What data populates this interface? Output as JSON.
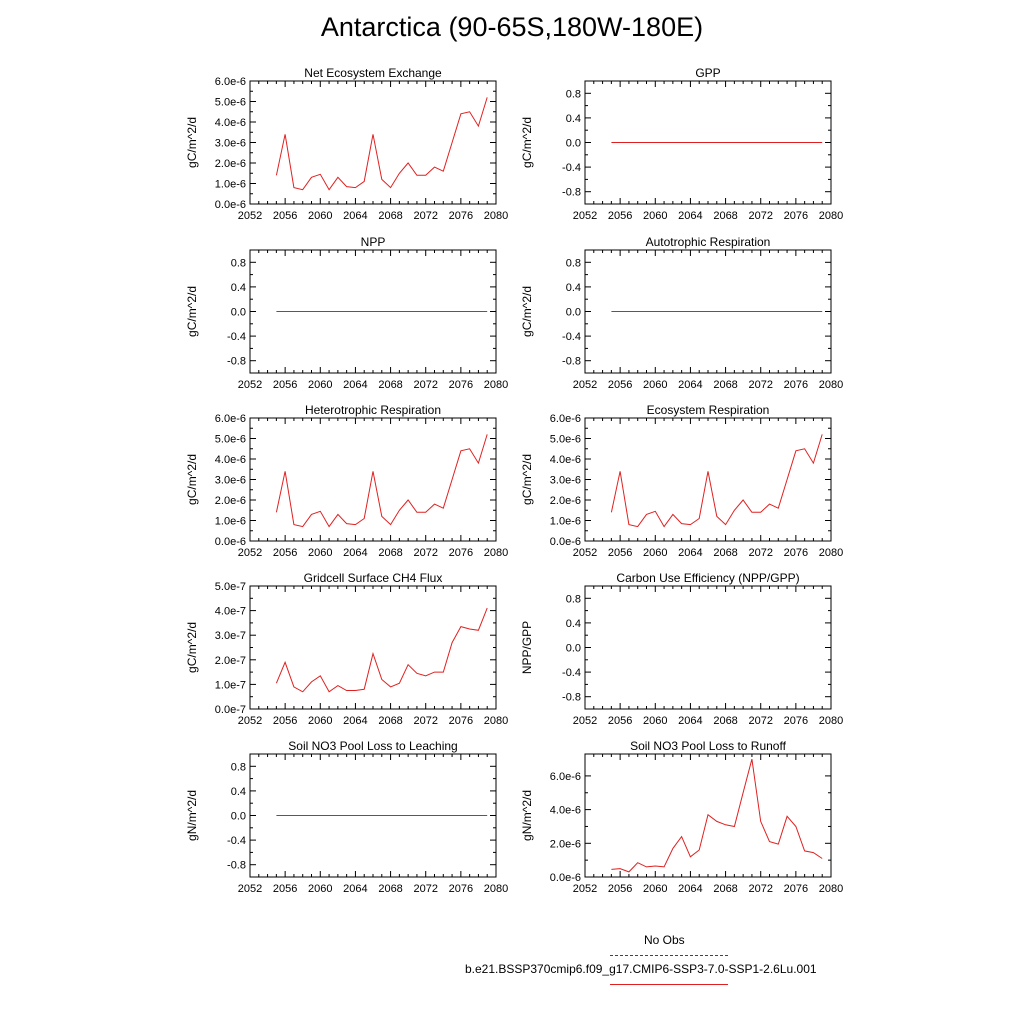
{
  "page": {
    "title": "Antarctica (90-65S,180W-180E)"
  },
  "colors": {
    "model_line": "#e02020",
    "obs_line": "#3333cc",
    "axis": "#000000"
  },
  "legend": [
    {
      "label": "No Obs",
      "style": "dashed",
      "color": "#3333cc"
    },
    {
      "label": "b.e21.BSSP370cmip6.f09_g17.CMIP6-SSP3-7.0-SSP1-2.6Lu.001",
      "style": "solid",
      "color": "#e02020"
    }
  ],
  "chart_data": [
    {
      "type": "line",
      "title": "Net Ecosystem Exchange",
      "ylabel": "gC/m^2/d",
      "xlim": [
        2052,
        2080
      ],
      "xticks": [
        "2052",
        "2056",
        "2060",
        "2064",
        "2068",
        "2072",
        "2076",
        "2080"
      ],
      "ylim": [
        0,
        6e-06
      ],
      "yticks": [
        0,
        1e-06,
        2e-06,
        3e-06,
        4e-06,
        5e-06,
        6e-06
      ],
      "yticklabels": [
        "0.0e-6",
        "1.0e-6",
        "2.0e-6",
        "3.0e-6",
        "4.0e-6",
        "5.0e-6",
        "6.0e-6"
      ],
      "x": [
        2055,
        2056,
        2057,
        2058,
        2059,
        2060,
        2061,
        2062,
        2063,
        2064,
        2065,
        2066,
        2067,
        2068,
        2069,
        2070,
        2071,
        2072,
        2073,
        2074,
        2075,
        2076,
        2077,
        2078,
        2079
      ],
      "series": [
        {
          "values": [
            1.4e-06,
            3.4e-06,
            8e-07,
            7e-07,
            1.3e-06,
            1.45e-06,
            7e-07,
            1.3e-06,
            8.5e-07,
            8e-07,
            1.1e-06,
            3.4e-06,
            1.2e-06,
            8e-07,
            1.5e-06,
            2e-06,
            1.4e-06,
            1.4e-06,
            1.8e-06,
            1.6e-06,
            3e-06,
            4.4e-06,
            4.5e-06,
            3.8e-06,
            5.2e-06
          ]
        }
      ]
    },
    {
      "type": "line",
      "title": "GPP",
      "ylabel": "gC/m^2/d",
      "xlim": [
        2052,
        2080
      ],
      "xticks": [
        "2052",
        "2056",
        "2060",
        "2064",
        "2068",
        "2072",
        "2076",
        "2080"
      ],
      "ylim": [
        -1.0,
        1.0
      ],
      "yticks": [
        -0.8,
        -0.4,
        0.0,
        0.4,
        0.8
      ],
      "yticklabels": [
        "-0.8",
        "-0.4",
        "0.0",
        "0.4",
        "0.8"
      ],
      "x": [
        2055,
        2079
      ],
      "series": [
        {
          "values": [
            0,
            0
          ]
        }
      ]
    },
    {
      "type": "line",
      "title": "NPP",
      "ylabel": "gC/m^2/d",
      "xlim": [
        2052,
        2080
      ],
      "xticks": [
        "2052",
        "2056",
        "2060",
        "2064",
        "2068",
        "2072",
        "2076",
        "2080"
      ],
      "ylim": [
        -1.0,
        1.0
      ],
      "yticks": [
        -0.8,
        -0.4,
        0.0,
        0.4,
        0.8
      ],
      "yticklabels": [
        "-0.8",
        "-0.4",
        "0.0",
        "0.4",
        "0.8"
      ],
      "x": [
        2055,
        2079
      ],
      "series": [
        {
          "values": [
            0,
            0
          ]
        }
      ]
    },
    {
      "type": "line",
      "title": "Autotrophic Respiration",
      "ylabel": "gC/m^2/d",
      "xlim": [
        2052,
        2080
      ],
      "xticks": [
        "2052",
        "2056",
        "2060",
        "2064",
        "2068",
        "2072",
        "2076",
        "2080"
      ],
      "ylim": [
        -1.0,
        1.0
      ],
      "yticks": [
        -0.8,
        -0.4,
        0.0,
        0.4,
        0.8
      ],
      "yticklabels": [
        "-0.8",
        "-0.4",
        "0.0",
        "0.4",
        "0.8"
      ],
      "x": [
        2055,
        2079
      ],
      "series": [
        {
          "values": [
            0,
            0
          ]
        }
      ]
    },
    {
      "type": "line",
      "title": "Heterotrophic Respiration",
      "ylabel": "gC/m^2/d",
      "xlim": [
        2052,
        2080
      ],
      "xticks": [
        "2052",
        "2056",
        "2060",
        "2064",
        "2068",
        "2072",
        "2076",
        "2080"
      ],
      "ylim": [
        0,
        6e-06
      ],
      "yticks": [
        0,
        1e-06,
        2e-06,
        3e-06,
        4e-06,
        5e-06,
        6e-06
      ],
      "yticklabels": [
        "0.0e-6",
        "1.0e-6",
        "2.0e-6",
        "3.0e-6",
        "4.0e-6",
        "5.0e-6",
        "6.0e-6"
      ],
      "x": [
        2055,
        2056,
        2057,
        2058,
        2059,
        2060,
        2061,
        2062,
        2063,
        2064,
        2065,
        2066,
        2067,
        2068,
        2069,
        2070,
        2071,
        2072,
        2073,
        2074,
        2075,
        2076,
        2077,
        2078,
        2079
      ],
      "series": [
        {
          "values": [
            1.4e-06,
            3.4e-06,
            8e-07,
            7e-07,
            1.3e-06,
            1.45e-06,
            7e-07,
            1.3e-06,
            8.5e-07,
            8e-07,
            1.1e-06,
            3.4e-06,
            1.2e-06,
            8e-07,
            1.5e-06,
            2e-06,
            1.4e-06,
            1.4e-06,
            1.8e-06,
            1.6e-06,
            3e-06,
            4.4e-06,
            4.5e-06,
            3.8e-06,
            5.2e-06
          ]
        }
      ]
    },
    {
      "type": "line",
      "title": "Ecosystem Respiration",
      "ylabel": "gC/m^2/d",
      "xlim": [
        2052,
        2080
      ],
      "xticks": [
        "2052",
        "2056",
        "2060",
        "2064",
        "2068",
        "2072",
        "2076",
        "2080"
      ],
      "ylim": [
        0,
        6e-06
      ],
      "yticks": [
        0,
        1e-06,
        2e-06,
        3e-06,
        4e-06,
        5e-06,
        6e-06
      ],
      "yticklabels": [
        "0.0e-6",
        "1.0e-6",
        "2.0e-6",
        "3.0e-6",
        "4.0e-6",
        "5.0e-6",
        "6.0e-6"
      ],
      "x": [
        2055,
        2056,
        2057,
        2058,
        2059,
        2060,
        2061,
        2062,
        2063,
        2064,
        2065,
        2066,
        2067,
        2068,
        2069,
        2070,
        2071,
        2072,
        2073,
        2074,
        2075,
        2076,
        2077,
        2078,
        2079
      ],
      "series": [
        {
          "values": [
            1.4e-06,
            3.4e-06,
            8e-07,
            7e-07,
            1.3e-06,
            1.45e-06,
            7e-07,
            1.3e-06,
            8.5e-07,
            8e-07,
            1.1e-06,
            3.4e-06,
            1.2e-06,
            8e-07,
            1.5e-06,
            2e-06,
            1.4e-06,
            1.4e-06,
            1.8e-06,
            1.6e-06,
            3e-06,
            4.4e-06,
            4.5e-06,
            3.8e-06,
            5.2e-06
          ]
        }
      ]
    },
    {
      "type": "line",
      "title": "Gridcell Surface CH4 Flux",
      "ylabel": "gC/m^2/d",
      "xlim": [
        2052,
        2080
      ],
      "xticks": [
        "2052",
        "2056",
        "2060",
        "2064",
        "2068",
        "2072",
        "2076",
        "2080"
      ],
      "ylim": [
        0,
        5e-07
      ],
      "yticks": [
        0,
        1e-07,
        2e-07,
        3e-07,
        4e-07,
        5e-07
      ],
      "yticklabels": [
        "0.0e-7",
        "1.0e-7",
        "2.0e-7",
        "3.0e-7",
        "4.0e-7",
        "5.0e-7"
      ],
      "x": [
        2055,
        2056,
        2057,
        2058,
        2059,
        2060,
        2061,
        2062,
        2063,
        2064,
        2065,
        2066,
        2067,
        2068,
        2069,
        2070,
        2071,
        2072,
        2073,
        2074,
        2075,
        2076,
        2077,
        2078,
        2079
      ],
      "series": [
        {
          "values": [
            1.05e-07,
            1.9e-07,
            9e-08,
            7e-08,
            1.1e-07,
            1.35e-07,
            7e-08,
            9.5e-08,
            7.5e-08,
            7.5e-08,
            8e-08,
            2.25e-07,
            1.2e-07,
            9e-08,
            1.05e-07,
            1.8e-07,
            1.45e-07,
            1.35e-07,
            1.5e-07,
            1.5e-07,
            2.7e-07,
            3.35e-07,
            3.25e-07,
            3.2e-07,
            4.1e-07
          ]
        }
      ]
    },
    {
      "type": "line",
      "title": "Carbon Use Efficiency (NPP/GPP)",
      "ylabel": "NPP/GPP",
      "xlim": [
        2052,
        2080
      ],
      "xticks": [
        "2052",
        "2056",
        "2060",
        "2064",
        "2068",
        "2072",
        "2076",
        "2080"
      ],
      "ylim": [
        -1.0,
        1.0
      ],
      "yticks": [
        -0.8,
        -0.4,
        0.0,
        0.4,
        0.8
      ],
      "yticklabels": [
        "-0.8",
        "-0.4",
        "0.0",
        "0.4",
        "0.8"
      ],
      "x": [],
      "series": [
        {
          "values": []
        }
      ]
    },
    {
      "type": "line",
      "title": "Soil NO3 Pool Loss to Leaching",
      "ylabel": "gN/m^2/d",
      "xlim": [
        2052,
        2080
      ],
      "xticks": [
        "2052",
        "2056",
        "2060",
        "2064",
        "2068",
        "2072",
        "2076",
        "2080"
      ],
      "ylim": [
        -1.0,
        1.0
      ],
      "yticks": [
        -0.8,
        -0.4,
        0.0,
        0.4,
        0.8
      ],
      "yticklabels": [
        "-0.8",
        "-0.4",
        "0.0",
        "0.4",
        "0.8"
      ],
      "x": [
        2055,
        2079
      ],
      "series": [
        {
          "values": [
            0,
            0
          ]
        }
      ]
    },
    {
      "type": "line",
      "title": "Soil NO3 Pool Loss to Runoff",
      "ylabel": "gN/m^2/d",
      "xlim": [
        2052,
        2080
      ],
      "xticks": [
        "2052",
        "2056",
        "2060",
        "2064",
        "2068",
        "2072",
        "2076",
        "2080"
      ],
      "ylim": [
        0,
        7.3e-06
      ],
      "yticks": [
        0,
        2e-06,
        4e-06,
        6e-06
      ],
      "yticklabels": [
        "0.0e-6",
        "2.0e-6",
        "4.0e-6",
        "6.0e-6"
      ],
      "x": [
        2055,
        2056,
        2057,
        2058,
        2059,
        2060,
        2061,
        2062,
        2063,
        2064,
        2065,
        2066,
        2067,
        2068,
        2069,
        2070,
        2071,
        2072,
        2073,
        2074,
        2075,
        2076,
        2077,
        2078,
        2079
      ],
      "series": [
        {
          "values": [
            4.5e-07,
            5e-07,
            3e-07,
            8.5e-07,
            6e-07,
            6.5e-07,
            6e-07,
            1.7e-06,
            2.4e-06,
            1.2e-06,
            1.6e-06,
            3.7e-06,
            3.3e-06,
            3.1e-06,
            3e-06,
            5e-06,
            7e-06,
            3.3e-06,
            2.1e-06,
            1.95e-06,
            3.6e-06,
            3e-06,
            1.55e-06,
            1.45e-06,
            1.1e-06
          ]
        }
      ]
    }
  ]
}
